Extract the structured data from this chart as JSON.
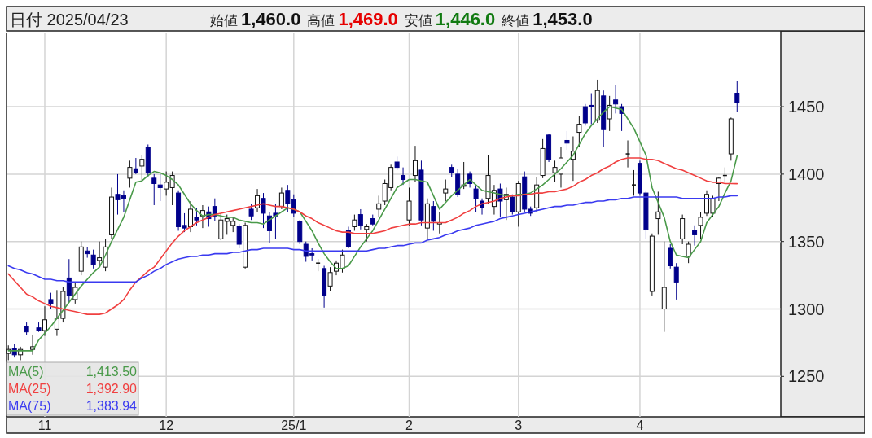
{
  "chart_data": {
    "type": "candlestick",
    "title": "日付 2025/04/23",
    "categories": [
      null,
      null,
      null,
      null,
      null,
      null,
      "11",
      null,
      null,
      null,
      null,
      null,
      null,
      null,
      null,
      null,
      null,
      null,
      null,
      null,
      null,
      null,
      null,
      null,
      null,
      null,
      "12",
      null,
      null,
      null,
      null,
      null,
      null,
      null,
      null,
      null,
      null,
      null,
      null,
      null,
      null,
      null,
      null,
      null,
      null,
      null,
      null,
      "25/1",
      null,
      null,
      null,
      null,
      null,
      null,
      null,
      null,
      null,
      null,
      null,
      null,
      null,
      null,
      null,
      null,
      null,
      null,
      "2",
      null,
      null,
      null,
      null,
      null,
      null,
      null,
      null,
      null,
      null,
      null,
      null,
      null,
      null,
      null,
      null,
      null,
      "3",
      null,
      null,
      null,
      null,
      null,
      null,
      null,
      null,
      null,
      null,
      null,
      null,
      null,
      null,
      null,
      null,
      null,
      null,
      null,
      "4",
      null,
      null,
      null,
      null,
      null,
      null,
      null,
      null,
      null,
      null,
      null,
      null,
      null,
      null,
      null,
      null
    ],
    "ohlc": [
      [
        1267,
        1273,
        1262,
        1270
      ],
      [
        1271,
        1274,
        1264,
        1266
      ],
      [
        1266,
        1272,
        1262,
        1270
      ],
      [
        1287,
        1290,
        1281,
        1283
      ],
      [
        1270,
        1281,
        1266,
        1272
      ],
      [
        1286,
        1290,
        1283,
        1284
      ],
      [
        1284,
        1302,
        1280,
        1292
      ],
      [
        1307,
        1312,
        1300,
        1304
      ],
      [
        1285,
        1314,
        1280,
        1293
      ],
      [
        1293,
        1316,
        1290,
        1313
      ],
      [
        1323,
        1337,
        1305,
        1310
      ],
      [
        1307,
        1320,
        1304,
        1316
      ],
      [
        1328,
        1350,
        1325,
        1346
      ],
      [
        1343,
        1346,
        1338,
        1341
      ],
      [
        1340,
        1344,
        1330,
        1333
      ],
      [
        1336,
        1350,
        1332,
        1338
      ],
      [
        1331,
        1352,
        1328,
        1346
      ],
      [
        1355,
        1390,
        1352,
        1383
      ],
      [
        1385,
        1400,
        1370,
        1381
      ],
      [
        1384,
        1388,
        1372,
        1382
      ],
      [
        1397,
        1410,
        1390,
        1405
      ],
      [
        1404,
        1412,
        1400,
        1401
      ],
      [
        1406,
        1414,
        1395,
        1411
      ],
      [
        1420,
        1422,
        1398,
        1401
      ],
      [
        1397,
        1400,
        1377,
        1393
      ],
      [
        1392,
        1400,
        1380,
        1390
      ],
      [
        1389,
        1402,
        1384,
        1394
      ],
      [
        1390,
        1402,
        1377,
        1399
      ],
      [
        1386,
        1388,
        1358,
        1361
      ],
      [
        1362,
        1371,
        1357,
        1360
      ],
      [
        1361,
        1380,
        1357,
        1374
      ],
      [
        1368,
        1375,
        1362,
        1366
      ],
      [
        1369,
        1377,
        1360,
        1373
      ],
      [
        1372,
        1376,
        1361,
        1367
      ],
      [
        1376,
        1382,
        1365,
        1369
      ],
      [
        1352,
        1371,
        1351,
        1366
      ],
      [
        1365,
        1370,
        1355,
        1367
      ],
      [
        1362,
        1368,
        1357,
        1365
      ],
      [
        1361,
        1363,
        1345,
        1348
      ],
      [
        1331,
        1364,
        1330,
        1362
      ],
      [
        1374,
        1378,
        1366,
        1369
      ],
      [
        1375,
        1389,
        1372,
        1384
      ],
      [
        1382,
        1386,
        1360,
        1371
      ],
      [
        1369,
        1372,
        1349,
        1358
      ],
      [
        1371,
        1378,
        1352,
        1369
      ],
      [
        1376,
        1390,
        1374,
        1386
      ],
      [
        1388,
        1392,
        1372,
        1378
      ],
      [
        1381,
        1385,
        1368,
        1371
      ],
      [
        1365,
        1366,
        1348,
        1350
      ],
      [
        1348,
        1350,
        1335,
        1339
      ],
      [
        1341,
        1345,
        1336,
        1340
      ],
      [
        1334,
        1337,
        1328,
        1334
      ],
      [
        1330,
        1332,
        1301,
        1310
      ],
      [
        1317,
        1331,
        1313,
        1327
      ],
      [
        1328,
        1336,
        1325,
        1334
      ],
      [
        1330,
        1344,
        1327,
        1340
      ],
      [
        1358,
        1361,
        1345,
        1346
      ],
      [
        1361,
        1370,
        1358,
        1366
      ],
      [
        1370,
        1374,
        1359,
        1362
      ],
      [
        1359,
        1363,
        1350,
        1361
      ],
      [
        1367,
        1370,
        1362,
        1363
      ],
      [
        1374,
        1384,
        1368,
        1378
      ],
      [
        1380,
        1396,
        1377,
        1393
      ],
      [
        1390,
        1407,
        1388,
        1405
      ],
      [
        1409,
        1413,
        1403,
        1405
      ],
      [
        1399,
        1405,
        1392,
        1396
      ],
      [
        1366,
        1390,
        1362,
        1380
      ],
      [
        1399,
        1421,
        1394,
        1410
      ],
      [
        1403,
        1410,
        1362,
        1366
      ],
      [
        1360,
        1382,
        1352,
        1378
      ],
      [
        1376,
        1380,
        1358,
        1365
      ],
      [
        1363,
        1372,
        1356,
        1364
      ],
      [
        1386,
        1396,
        1380,
        1389
      ],
      [
        1405,
        1407,
        1398,
        1401
      ],
      [
        1400,
        1404,
        1383,
        1385
      ],
      [
        1391,
        1409,
        1389,
        1392
      ],
      [
        1400,
        1402,
        1390,
        1393
      ],
      [
        1389,
        1392,
        1372,
        1382
      ],
      [
        1380,
        1382,
        1370,
        1375
      ],
      [
        1382,
        1414,
        1378,
        1399
      ],
      [
        1376,
        1392,
        1370,
        1388
      ],
      [
        1389,
        1393,
        1368,
        1380
      ],
      [
        1381,
        1390,
        1366,
        1385
      ],
      [
        1383,
        1385,
        1370,
        1372
      ],
      [
        1372,
        1395,
        1361,
        1393
      ],
      [
        1398,
        1402,
        1372,
        1374
      ],
      [
        1374,
        1376,
        1369,
        1371
      ],
      [
        1375,
        1398,
        1372,
        1392
      ],
      [
        1399,
        1426,
        1397,
        1419
      ],
      [
        1429,
        1430,
        1409,
        1411
      ],
      [
        1401,
        1410,
        1394,
        1405
      ],
      [
        1400,
        1420,
        1390,
        1412
      ],
      [
        1425,
        1432,
        1418,
        1423
      ],
      [
        1411,
        1428,
        1395,
        1417
      ],
      [
        1431,
        1443,
        1420,
        1437
      ],
      [
        1450,
        1452,
        1436,
        1438
      ],
      [
        1451,
        1460,
        1437,
        1450
      ],
      [
        1440,
        1470,
        1438,
        1462
      ],
      [
        1458,
        1462,
        1420,
        1433
      ],
      [
        1441,
        1458,
        1432,
        1451
      ],
      [
        1455,
        1466,
        1445,
        1452
      ],
      [
        1450,
        1452,
        1432,
        1445
      ],
      [
        1415,
        1425,
        1405,
        1415
      ],
      [
        1392,
        1403,
        1384,
        1392
      ],
      [
        1408,
        1410,
        1384,
        1386
      ],
      [
        1386,
        1388,
        1352,
        1359
      ],
      [
        1313,
        1356,
        1310,
        1354
      ],
      [
        1367,
        1387,
        1355,
        1372
      ],
      [
        1300,
        1350,
        1283,
        1316
      ],
      [
        1345,
        1348,
        1330,
        1332
      ],
      [
        1331,
        1334,
        1307,
        1320
      ],
      [
        1352,
        1370,
        1348,
        1367
      ],
      [
        1339,
        1350,
        1334,
        1348
      ],
      [
        1358,
        1362,
        1347,
        1355
      ],
      [
        1362,
        1372,
        1352,
        1368
      ],
      [
        1371,
        1388,
        1369,
        1385
      ],
      [
        1371,
        1384,
        1368,
        1382
      ],
      [
        1393,
        1398,
        1380,
        1397
      ],
      [
        1399,
        1405,
        1394,
        1399
      ],
      [
        1415,
        1442,
        1410,
        1441
      ],
      [
        1460,
        1469,
        1446,
        1453
      ]
    ],
    "series": [
      {
        "name": "MA(5)",
        "type": "line",
        "color": "#4a9a4a",
        "values": [
          1269,
          1269,
          1269,
          1269,
          1269,
          1277,
          1282,
          1287,
          1293,
          1299,
          1305,
          1311,
          1317,
          1322,
          1327,
          1331,
          1340,
          1350,
          1359,
          1368,
          1381,
          1394,
          1395,
          1399,
          1402,
          1401,
          1399,
          1396,
          1392,
          1385,
          1378,
          1373,
          1369,
          1370,
          1370,
          1369,
          1368,
          1368,
          1366,
          1365,
          1364,
          1364,
          1363,
          1366,
          1369,
          1372,
          1375,
          1374,
          1372,
          1365,
          1358,
          1349,
          1341,
          1335,
          1330,
          1330,
          1332,
          1339,
          1346,
          1352,
          1358,
          1366,
          1374,
          1382,
          1390,
          1393,
          1396,
          1396,
          1395,
          1394,
          1384,
          1374,
          1379,
          1384,
          1388,
          1392,
          1396,
          1392,
          1388,
          1387,
          1386,
          1385,
          1384,
          1384,
          1385,
          1385,
          1386,
          1389,
          1392,
          1396,
          1400,
          1404,
          1409,
          1414,
          1422,
          1430,
          1436,
          1441,
          1446,
          1450,
          1449,
          1448,
          1441,
          1434,
          1424,
          1414,
          1390,
          1379,
          1368,
          1350,
          1340,
          1339,
          1338,
          1344,
          1350,
          1364,
          1370,
          1376,
          1386,
          1395,
          1413.5
        ]
      },
      {
        "name": "MA(25)",
        "type": "line",
        "color": "#f04040",
        "values": [
          1326,
          1321,
          1316,
          1311,
          1309,
          1306,
          1304,
          1302,
          1301,
          1300,
          1299,
          1298,
          1297,
          1296,
          1296,
          1296,
          1297,
          1300,
          1303,
          1307,
          1314,
          1320,
          1324,
          1328,
          1331,
          1337,
          1343,
          1349,
          1354,
          1358,
          1361,
          1364,
          1366,
          1368,
          1370,
          1371,
          1372,
          1373,
          1374,
          1375,
          1376,
          1377,
          1378,
          1377,
          1376,
          1376,
          1375,
          1374,
          1372,
          1369,
          1367,
          1364,
          1362,
          1360,
          1358,
          1357,
          1357,
          1356,
          1356,
          1356,
          1356,
          1357,
          1358,
          1360,
          1361,
          1362,
          1363,
          1363,
          1364,
          1364,
          1364,
          1364,
          1364,
          1366,
          1368,
          1371,
          1373,
          1376,
          1378,
          1379,
          1380,
          1382,
          1383,
          1384,
          1384,
          1385,
          1385,
          1386,
          1386,
          1387,
          1387,
          1388,
          1389,
          1391,
          1394,
          1396,
          1399,
          1401,
          1404,
          1406,
          1409,
          1411,
          1412,
          1412,
          1412,
          1411,
          1411,
          1410,
          1408,
          1406,
          1404,
          1403,
          1401,
          1399,
          1397,
          1395,
          1394,
          1394,
          1393,
          1393,
          1392.9
        ]
      },
      {
        "name": "MA(75)",
        "type": "line",
        "color": "#3a3af0",
        "values": [
          1332,
          1330,
          1329,
          1327,
          1326,
          1324,
          1322,
          1322,
          1321,
          1321,
          1320,
          1320,
          1320,
          1320,
          1320,
          1320,
          1320,
          1320,
          1320,
          1320,
          1320,
          1320,
          1323,
          1325,
          1328,
          1330,
          1333,
          1335,
          1337,
          1338,
          1339,
          1339,
          1340,
          1340,
          1341,
          1341,
          1341,
          1342,
          1342,
          1343,
          1344,
          1344,
          1345,
          1345,
          1345,
          1345,
          1345,
          1344,
          1344,
          1343,
          1343,
          1343,
          1343,
          1343,
          1343,
          1343,
          1343,
          1343,
          1343,
          1343,
          1344,
          1345,
          1345,
          1346,
          1347,
          1347,
          1348,
          1349,
          1349,
          1351,
          1352,
          1353,
          1355,
          1356,
          1358,
          1359,
          1360,
          1362,
          1363,
          1364,
          1365,
          1367,
          1368,
          1369,
          1370,
          1371,
          1372,
          1373,
          1374,
          1375,
          1376,
          1376,
          1377,
          1377,
          1378,
          1379,
          1379,
          1380,
          1380,
          1381,
          1381,
          1382,
          1382,
          1383,
          1383,
          1383,
          1383,
          1383,
          1383,
          1383,
          1383,
          1382,
          1382,
          1382,
          1382,
          1382,
          1382,
          1383,
          1383,
          1384,
          1384
        ]
      }
    ],
    "ylim": [
      1220,
      1505
    ],
    "yticks": [
      1250,
      1300,
      1350,
      1400,
      1450
    ],
    "grid": true,
    "legend": "bottom left",
    "annotations": [
      "始値",
      "1,460.0",
      "高値",
      "1,469.0",
      "安値",
      "1,446.0",
      "終値",
      "1,453.0",
      "1,413.50",
      "1,392.90",
      "1,383.94"
    ]
  }
}
